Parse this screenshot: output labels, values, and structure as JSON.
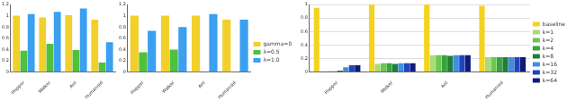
{
  "chart_data": [
    {
      "type": "bar",
      "categories": [
        "Hopper",
        "Walker",
        "Ant",
        "Humanoid"
      ],
      "series": [
        {
          "color": "#f2d02b",
          "values": [
            1.0,
            0.97,
            1.01,
            0.93
          ]
        },
        {
          "color": "#4fc13c",
          "values": [
            0.38,
            0.5,
            0.39,
            0.17
          ]
        },
        {
          "color": "#3ba0f0",
          "values": [
            1.03,
            1.07,
            1.13,
            0.53
          ]
        }
      ],
      "ylim": [
        0,
        1.2
      ],
      "yticks": [
        0,
        0.2,
        0.4,
        0.6,
        0.8,
        1.0,
        1.2
      ],
      "grid": false
    },
    {
      "type": "bar",
      "categories": [
        "Hopper",
        "Walker",
        "Ant",
        "Humanoid"
      ],
      "series": [
        {
          "name": "gamma=0",
          "color": "#f2d02b",
          "values": [
            1.0,
            1.0,
            1.0,
            0.93
          ]
        },
        {
          "name": "λ=0.5",
          "color": "#4fc13c",
          "values": [
            0.35,
            0.4,
            null,
            null
          ]
        },
        {
          "name": "λ=1.0",
          "color": "#3ba0f0",
          "values": [
            0.73,
            0.8,
            1.03,
            0.93
          ]
        }
      ],
      "ylim": [
        0,
        1.2
      ],
      "yticks": [
        0,
        0.2,
        0.4,
        0.6,
        0.8,
        1.0,
        1.2
      ],
      "grid": false,
      "legend": "right"
    },
    {
      "type": "bar",
      "categories": [
        "Hopper",
        "Walker",
        "Ant",
        "Humanoid"
      ],
      "series": [
        {
          "name": "baseline",
          "color": "#f4d31e",
          "values": [
            0.95,
            1.0,
            1.0,
            0.98
          ]
        },
        {
          "name": "k=1",
          "color": "#a8dc7a",
          "values": [
            0.01,
            0.12,
            0.25,
            0.22
          ]
        },
        {
          "name": "k=2",
          "color": "#6cc651",
          "values": [
            0.01,
            0.13,
            0.25,
            0.22
          ]
        },
        {
          "name": "k=4",
          "color": "#35a53c",
          "values": [
            0.01,
            0.13,
            0.25,
            0.22
          ]
        },
        {
          "name": "k=8",
          "color": "#1f7f3a",
          "values": [
            0.02,
            0.12,
            0.24,
            0.22
          ]
        },
        {
          "name": "k=16",
          "color": "#3f8fe0",
          "values": [
            0.07,
            0.13,
            0.25,
            0.22
          ]
        },
        {
          "name": "k=32",
          "color": "#2244bb",
          "values": [
            0.1,
            0.13,
            0.25,
            0.22
          ]
        },
        {
          "name": "k=64",
          "color": "#101a7a",
          "values": [
            0.1,
            0.13,
            0.25,
            0.22
          ]
        }
      ],
      "ylim": [
        0,
        1.0
      ],
      "yticks": [
        0,
        0.2,
        0.4,
        0.6,
        0.8,
        1.0
      ],
      "grid": true,
      "legend": "right"
    }
  ]
}
